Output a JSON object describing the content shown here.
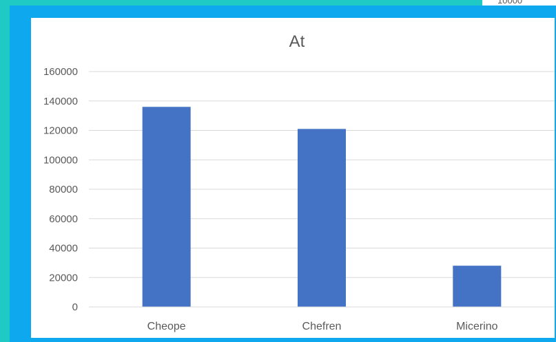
{
  "background_window": {
    "peek_text": "10000"
  },
  "chart_data": {
    "type": "bar",
    "title": "At",
    "categories": [
      "Cheope",
      "Chefren",
      "Micerino"
    ],
    "values": [
      136000,
      121000,
      28000
    ],
    "xlabel": "",
    "ylabel": "",
    "ylim": [
      0,
      160000
    ],
    "yticks": [
      0,
      20000,
      40000,
      60000,
      80000,
      100000,
      120000,
      140000,
      160000
    ],
    "grid": true,
    "legend": "none",
    "bar_color": "#4472c4",
    "grid_color": "#d9d9d9",
    "text_color": "#595959"
  }
}
